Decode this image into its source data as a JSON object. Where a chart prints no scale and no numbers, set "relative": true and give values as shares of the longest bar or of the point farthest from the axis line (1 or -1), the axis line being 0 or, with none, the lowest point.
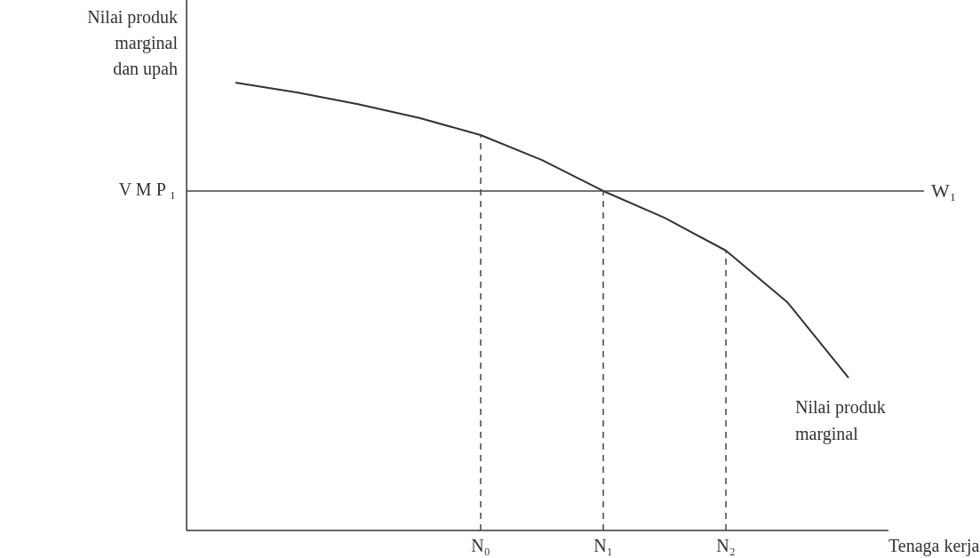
{
  "chart_data": {
    "type": "line",
    "relative": true,
    "xlabel": "Tenaga kerja",
    "ylabel": "Nilai produk marginal dan upah",
    "categories": [
      null,
      null,
      null,
      null,
      "N₀",
      null,
      "N₁",
      null,
      "N₂",
      null,
      null
    ],
    "series": [
      {
        "name": "Nilai produk marginal",
        "color": "#333333",
        "values": [
          1,
          0.978,
          0.952,
          0.921,
          0.883,
          0.827,
          0.758,
          0.698,
          0.625,
          0.51,
          0.341
        ]
      }
    ],
    "ref_lines": [
      {
        "axis": "y",
        "value": 0.758,
        "label": "V M P ₁",
        "color": "#444444",
        "line_style": "solid"
      },
      {
        "axis": "x",
        "value": "N₀",
        "color": "#444444",
        "line_style": "dashed"
      },
      {
        "axis": "x",
        "value": "N₁",
        "color": "#444444",
        "line_style": "dashed"
      },
      {
        "axis": "x",
        "value": "N₂",
        "color": "#444444",
        "line_style": "dashed"
      }
    ],
    "annotations": [
      "W₁"
    ],
    "marker": "none",
    "line_style": "solid"
  }
}
